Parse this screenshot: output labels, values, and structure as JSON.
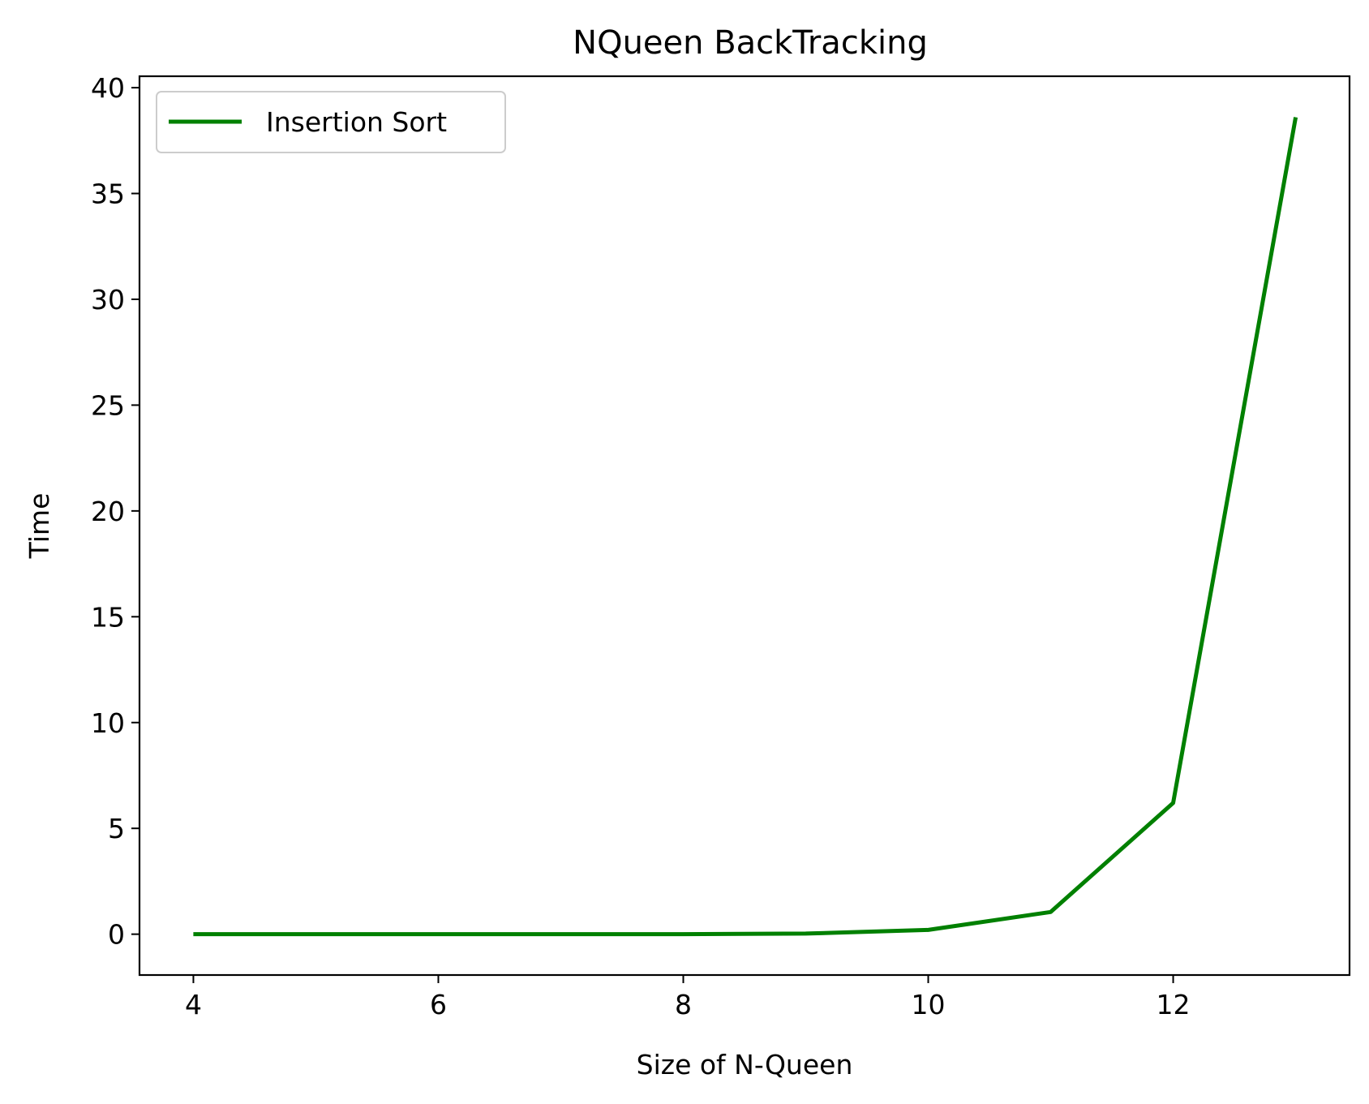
{
  "chart_data": {
    "type": "line",
    "title": "NQueen BackTracking",
    "xlabel": "Size of N-Queen",
    "ylabel": "Time",
    "x": [
      4,
      5,
      6,
      7,
      8,
      9,
      10,
      11,
      12,
      13
    ],
    "series": [
      {
        "name": "Insertion Sort",
        "color": "#008000",
        "values": [
          0.0,
          0.0,
          0.0,
          0.0,
          0.0,
          0.03,
          0.2,
          1.05,
          6.2,
          38.6
        ]
      }
    ],
    "xlim": [
      3.56,
      13.44
    ],
    "ylim": [
      -1.93,
      40.54
    ],
    "xticks": [
      4,
      6,
      8,
      10,
      12
    ],
    "yticks": [
      0,
      5,
      10,
      15,
      20,
      25,
      30,
      35,
      40
    ],
    "grid": false,
    "legend_position": "upper left"
  }
}
